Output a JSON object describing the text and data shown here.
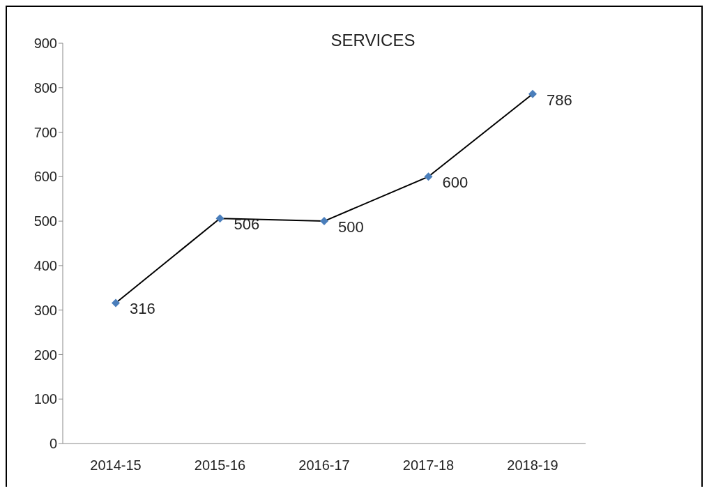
{
  "chart_data": {
    "type": "line",
    "title": "SERVICES",
    "categories": [
      "2014-15",
      "2015-16",
      "2016-17",
      "2017-18",
      "2018-19"
    ],
    "series": [
      {
        "color": "#000000",
        "colors": [
          "#4a7ebb",
          "#4a7ebb",
          "#4a7ebb",
          "#4a7ebb",
          "#4a7ebb"
        ],
        "values": [
          316,
          506,
          500,
          600,
          786
        ]
      }
    ],
    "ylim": [
      0,
      900
    ],
    "yticks": [
      0,
      100,
      200,
      300,
      400,
      500,
      600,
      700,
      800,
      900
    ],
    "grid": false,
    "marker": "diamond",
    "line_style": "solid",
    "data_labels": true
  }
}
